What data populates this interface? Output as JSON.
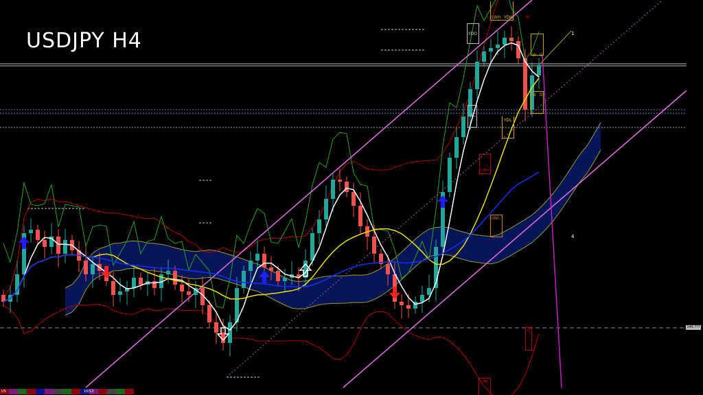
{
  "title": "USDJPY H4",
  "colors": {
    "bull": "#26a69a",
    "bear": "#ef5350",
    "channel": "#e070e0",
    "ma_fast": "#ffffff",
    "ma_slow": "#e8e000",
    "ma_long": "#1030ff",
    "cloud": "#1a3cff",
    "bands": "#b00000",
    "envelope": "#9a9a20",
    "momentum": "#1fa01f"
  },
  "labels": {
    "ydo": "YDO",
    "dc": "DC",
    "lwh": "LWH",
    "ydh": "YDH",
    "m_top": "M",
    "w_top": "W",
    "d_top": "D",
    "w_mid": "W",
    "d_mid": "D",
    "ydl": "YDL",
    "lmh": "LMH",
    "lwl": "LWL",
    "m_low": "M",
    "lml": "LML",
    "one": "1",
    "four": "4",
    "price_tag": "146.???",
    "bottom_left": "US",
    "bottom_date": "10/13"
  },
  "chart_data": {
    "type": "candlestick",
    "title": "USDJPY H4",
    "closes": [
      141.2,
      141.4,
      142.0,
      143.2,
      143.3,
      143.0,
      142.8,
      143.1,
      142.6,
      143.0,
      142.7,
      142.4,
      142.0,
      142.3,
      142.1,
      141.8,
      141.4,
      141.5,
      141.6,
      141.9,
      141.7,
      141.8,
      141.6,
      142.0,
      142.1,
      141.7,
      141.5,
      141.4,
      141.6,
      141.1,
      140.6,
      140.3,
      140.0,
      140.6,
      141.6,
      142.1,
      142.4,
      142.6,
      142.2,
      142.1,
      141.8,
      141.9,
      142.0,
      141.9,
      142.4,
      143.2,
      143.6,
      144.2,
      144.76,
      144.7,
      144.4,
      144.0,
      143.4,
      143.1,
      142.6,
      142.3,
      142.0,
      141.2,
      141.1,
      141.0,
      141.2,
      141.4,
      141.6,
      142.8,
      144.4,
      145.4,
      146.0,
      146.6,
      147.4,
      148.2,
      148.5,
      148.6,
      148.7,
      148.9,
      148.8,
      148.3,
      146.8,
      147.8,
      148.1
    ],
    "ylim": [
      139.0,
      150.0
    ],
    "signals": [
      {
        "index": 3,
        "type": "buy"
      },
      {
        "index": 38,
        "type": "buy"
      },
      {
        "index": 64,
        "type": "buy"
      },
      {
        "index": 15,
        "type": "sell"
      },
      {
        "index": 57,
        "type": "sell"
      },
      {
        "index": 44,
        "type": "buy-outline"
      },
      {
        "index": 32,
        "type": "sell-outline"
      }
    ],
    "indicators": [
      "SMA 10",
      "SMA 30",
      "SMA 60",
      "Bollinger Bands",
      "Ichimoku Cloud",
      "Regression Channel"
    ],
    "grid": false
  }
}
